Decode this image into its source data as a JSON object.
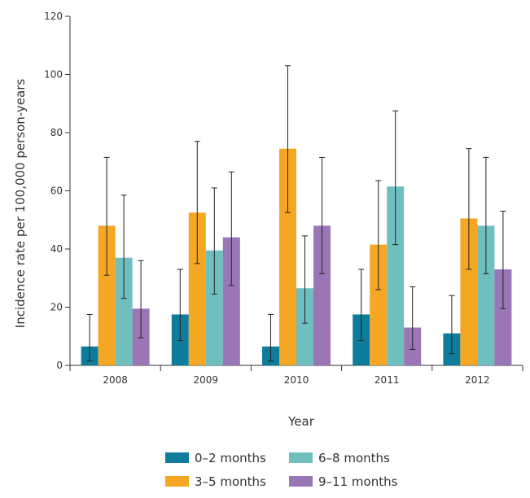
{
  "chart_data": {
    "type": "bar",
    "xlabel": "Year",
    "ylabel": "Incidence rate per 100,000 person-years",
    "ylim": [
      0,
      120
    ],
    "yticks": [
      0,
      20,
      40,
      60,
      80,
      100,
      120
    ],
    "categories": [
      "2008",
      "2009",
      "2010",
      "2011",
      "2012"
    ],
    "error_bars": true,
    "legend_position": "bottom",
    "series": [
      {
        "name": "0–2 months",
        "color": "#0e7d9b",
        "values": [
          6.5,
          17.5,
          6.5,
          17.5,
          11
        ],
        "lower": [
          1.5,
          8.5,
          1.5,
          8.5,
          4
        ],
        "upper": [
          17.5,
          33,
          17.5,
          33,
          24
        ]
      },
      {
        "name": "3–5 months",
        "color": "#f5a623",
        "values": [
          48,
          52.5,
          74.5,
          41.5,
          50.5
        ],
        "lower": [
          31,
          35,
          52.5,
          26,
          33
        ],
        "upper": [
          71.5,
          77,
          103,
          63.5,
          74.5
        ]
      },
      {
        "name": "6–8 months",
        "color": "#6fbfbf",
        "values": [
          37,
          39.5,
          26.5,
          61.5,
          48
        ],
        "lower": [
          23,
          24.5,
          14.5,
          41.5,
          31.5
        ],
        "upper": [
          58.5,
          61,
          44.5,
          87.5,
          71.5
        ]
      },
      {
        "name": "9–11 months",
        "color": "#9b76b6",
        "values": [
          19.5,
          44,
          48,
          13,
          33
        ],
        "lower": [
          9.5,
          27.5,
          31.5,
          5.5,
          19.5
        ],
        "upper": [
          36,
          66.5,
          71.5,
          27,
          53
        ]
      }
    ]
  }
}
